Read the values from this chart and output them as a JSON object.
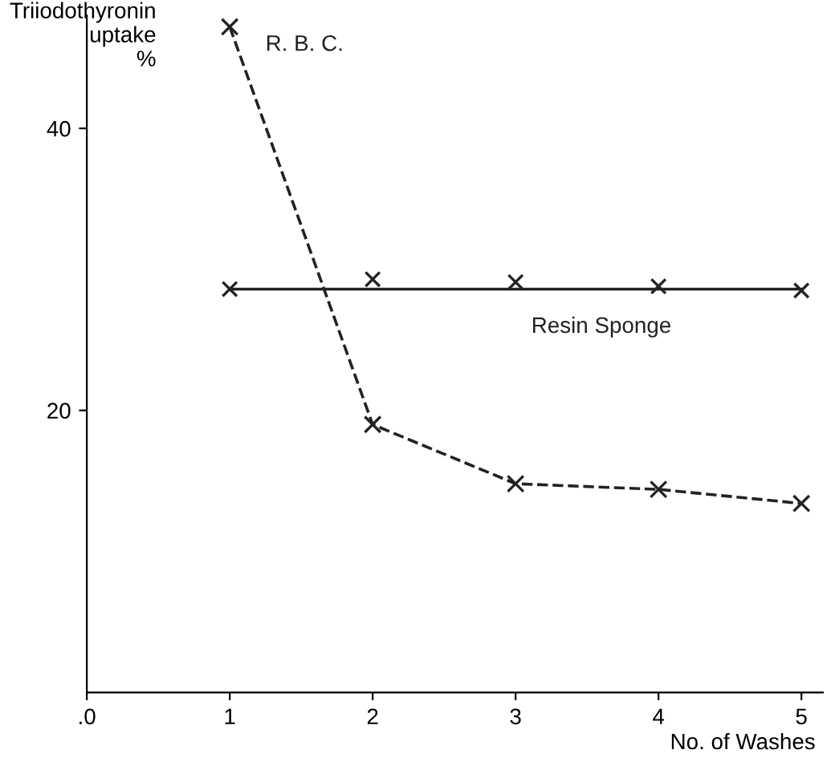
{
  "chart_data": {
    "type": "line",
    "ylabel": "Triiodothyronin\nuptake\n%",
    "xlabel": "No. of Washes",
    "xlim": [
      0,
      5.15
    ],
    "ylim": [
      0,
      48
    ],
    "xticks": [
      {
        "value": 0,
        "label": ".0"
      },
      1,
      2,
      3,
      4,
      5
    ],
    "yticks": [
      20,
      40
    ],
    "grid": false,
    "legend": false,
    "series": [
      {
        "name": "R. B. C.",
        "color": "#222222",
        "x": [
          1,
          2,
          3,
          4,
          5
        ],
        "values": [
          47.2,
          19.0,
          14.8,
          14.4,
          13.4
        ],
        "marker": "cross",
        "line_style": "dashed"
      },
      {
        "name": "Resin Sponge",
        "type": "scatter",
        "color": "#222222",
        "x": [
          1,
          2,
          3,
          4,
          5
        ],
        "values": [
          28.6,
          29.3,
          29.1,
          28.8,
          28.5
        ],
        "marker": "cross"
      },
      {
        "type": "line",
        "color": "#222222",
        "x": [
          1,
          5
        ],
        "values": [
          28.6,
          28.6
        ],
        "marker": "none",
        "line_style": "solid"
      }
    ]
  }
}
